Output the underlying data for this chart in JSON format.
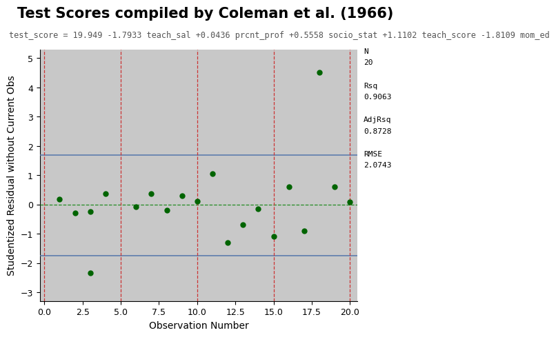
{
  "title": "Test Scores compiled by Coleman et al. (1966)",
  "subtitle": "test_score = 19.949 -1.7933 teach_sal +0.0436 prcnt_prof +0.5558 socio_stat +1.1102 teach_score -1.8109 mom_ed",
  "xlabel": "Observation Number",
  "ylabel": "Studentized Residual without Current Obs",
  "xlim": [
    -0.3,
    20.5
  ],
  "ylim": [
    -3.3,
    5.3
  ],
  "xticks": [
    0.0,
    2.5,
    5.0,
    7.5,
    10.0,
    12.5,
    15.0,
    17.5,
    20.0
  ],
  "yticks": [
    -3,
    -2,
    -1,
    0,
    1,
    2,
    3,
    4,
    5
  ],
  "obs_x": [
    1,
    2,
    3,
    4,
    6,
    7,
    8,
    9,
    10,
    11,
    12,
    13,
    14,
    15,
    16,
    17,
    18,
    19,
    20
  ],
  "obs_y": [
    0.17,
    -0.3,
    -0.25,
    0.37,
    -0.08,
    0.37,
    -0.2,
    0.31,
    0.11,
    1.05,
    -1.3,
    -0.7,
    -0.15,
    -1.1,
    0.6,
    -0.9,
    4.52,
    0.6,
    0.08
  ],
  "outlier_x": [
    3
  ],
  "outlier_y": [
    -2.35
  ],
  "hline_zero": 0,
  "hline_upper": 1.7,
  "hline_lower": -1.75,
  "vlines_red": [
    0,
    5,
    10,
    15,
    20
  ],
  "dot_color": "#006400",
  "hline_blue_color": "#5577AA",
  "hline_zero_color": "#228B22",
  "vline_red_color": "#CC3333",
  "bg_color": "#C8C8C8",
  "stats_lines": [
    "N",
    "20",
    "",
    "Rsq",
    "0.9063",
    "",
    "AdjRsq",
    "0.8728",
    "",
    "RMSE",
    "2.0743"
  ],
  "title_fontsize": 15,
  "subtitle_fontsize": 8.5,
  "axis_label_fontsize": 10,
  "tick_fontsize": 9,
  "stats_fontsize": 8
}
